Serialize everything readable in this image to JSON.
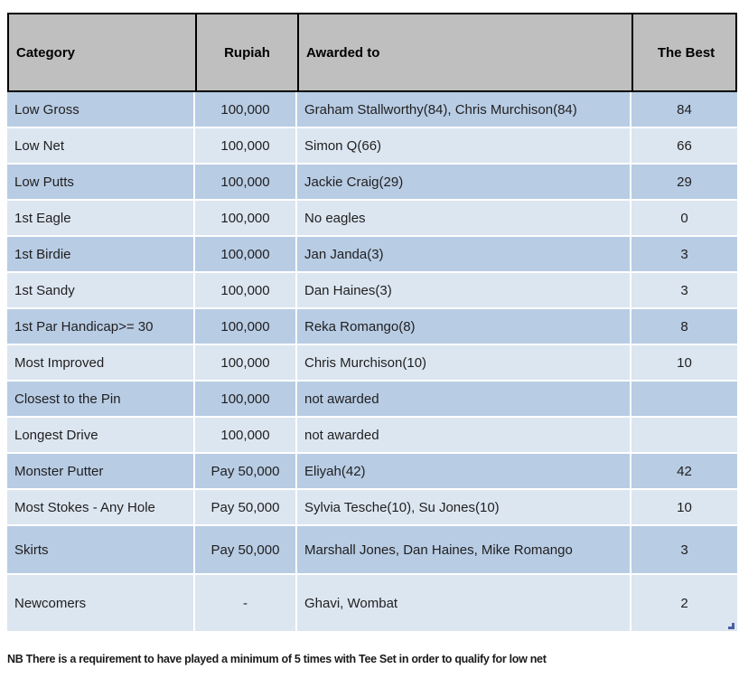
{
  "table": {
    "headers": [
      "Category",
      "Rupiah",
      "Awarded to",
      "The Best"
    ],
    "rows": [
      {
        "category": "Low Gross",
        "rupiah": "100,000",
        "awarded": "Graham Stallworthy(84), Chris Murchison(84)",
        "best": "84"
      },
      {
        "category": "Low Net",
        "rupiah": "100,000",
        "awarded": "Simon Q(66)",
        "best": "66"
      },
      {
        "category": "Low Putts",
        "rupiah": "100,000",
        "awarded": "Jackie Craig(29)",
        "best": "29"
      },
      {
        "category": "1st Eagle",
        "rupiah": "100,000",
        "awarded": "No eagles",
        "best": "0"
      },
      {
        "category": "1st Birdie",
        "rupiah": "100,000",
        "awarded": "Jan Janda(3)",
        "best": "3"
      },
      {
        "category": "1st Sandy",
        "rupiah": "100,000",
        "awarded": "Dan Haines(3)",
        "best": "3"
      },
      {
        "category": "1st Par Handicap>= 30",
        "rupiah": "100,000",
        "awarded": "Reka Romango(8)",
        "best": "8"
      },
      {
        "category": "Most Improved",
        "rupiah": "100,000",
        "awarded": "Chris Murchison(10)",
        "best": "10"
      },
      {
        "category": "Closest to the Pin",
        "rupiah": "100,000",
        "awarded": "not awarded",
        "best": ""
      },
      {
        "category": "Longest Drive",
        "rupiah": "100,000",
        "awarded": "not awarded",
        "best": ""
      },
      {
        "category": "Monster Putter",
        "rupiah": "Pay 50,000",
        "awarded": "Eliyah(42)",
        "best": "42"
      },
      {
        "category": "Most Stokes - Any Hole",
        "rupiah": "Pay 50,000",
        "awarded": "Sylvia Tesche(10), Su Jones(10)",
        "best": "10"
      },
      {
        "category": "Skirts",
        "rupiah": "Pay 50,000",
        "awarded": "Marshall Jones, Dan Haines, Mike Romango",
        "best": "3"
      },
      {
        "category": "Newcomers",
        "rupiah": "-",
        "awarded": "Ghavi, Wombat",
        "best": "2"
      }
    ]
  },
  "footnote": "NB There is a requirement to have played a minimum of 5 times with Tee Set in order to qualify for low net",
  "colors": {
    "header_bg": "#bfbfbf",
    "row_dark": "#b8cce4",
    "row_light": "#dce6f1",
    "border": "#000000",
    "handle": "#4a5fa5"
  }
}
